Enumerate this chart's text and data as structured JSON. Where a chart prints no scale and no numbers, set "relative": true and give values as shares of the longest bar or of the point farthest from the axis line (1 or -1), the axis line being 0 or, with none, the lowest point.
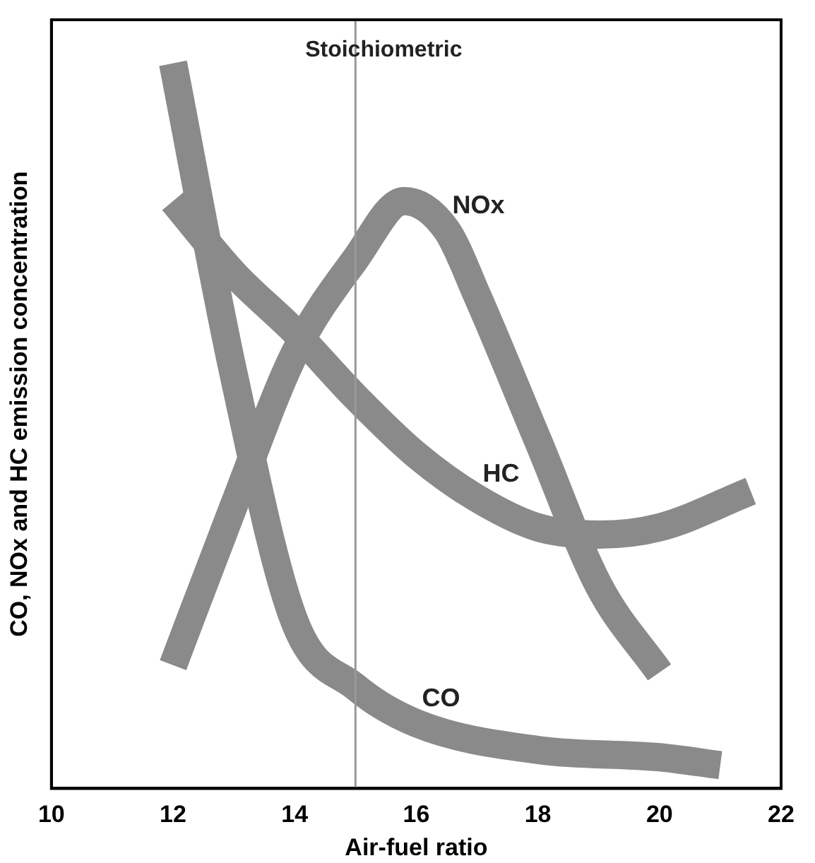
{
  "chart_data": {
    "type": "line",
    "relative": true,
    "xlabel": "Air-fuel ratio",
    "ylabel": "CO, NOx and HC emission concentration",
    "xlim": [
      10,
      22
    ],
    "xticks": [
      10,
      12,
      14,
      16,
      18,
      20,
      22
    ],
    "grid": false,
    "legend": false,
    "marker": "none",
    "series": [
      {
        "name": "NOx",
        "color": "#8a8a8a",
        "x": [
          12,
          13,
          14,
          15,
          15.8,
          16.5,
          17,
          18,
          19,
          20
        ],
        "values": [
          0.17,
          0.39,
          0.6,
          0.73,
          0.81,
          0.77,
          0.68,
          0.48,
          0.28,
          0.16
        ]
      },
      {
        "name": "HC",
        "color": "#8a8a8a",
        "x": [
          12,
          13,
          14,
          15,
          16,
          17,
          18,
          19,
          20,
          21.5
        ],
        "values": [
          0.81,
          0.71,
          0.63,
          0.54,
          0.46,
          0.4,
          0.36,
          0.35,
          0.36,
          0.41
        ]
      },
      {
        "name": "CO",
        "color": "#8a8a8a",
        "x": [
          12,
          13,
          14,
          15,
          16,
          18,
          20,
          21
        ],
        "values": [
          1,
          0.57,
          0.23,
          0.14,
          0.09,
          0.053,
          0.043,
          0.032
        ]
      }
    ],
    "ref_lines": [
      {
        "axis": "x",
        "value": 15,
        "label": "Stoichiometric",
        "color": "#999999"
      }
    ]
  }
}
